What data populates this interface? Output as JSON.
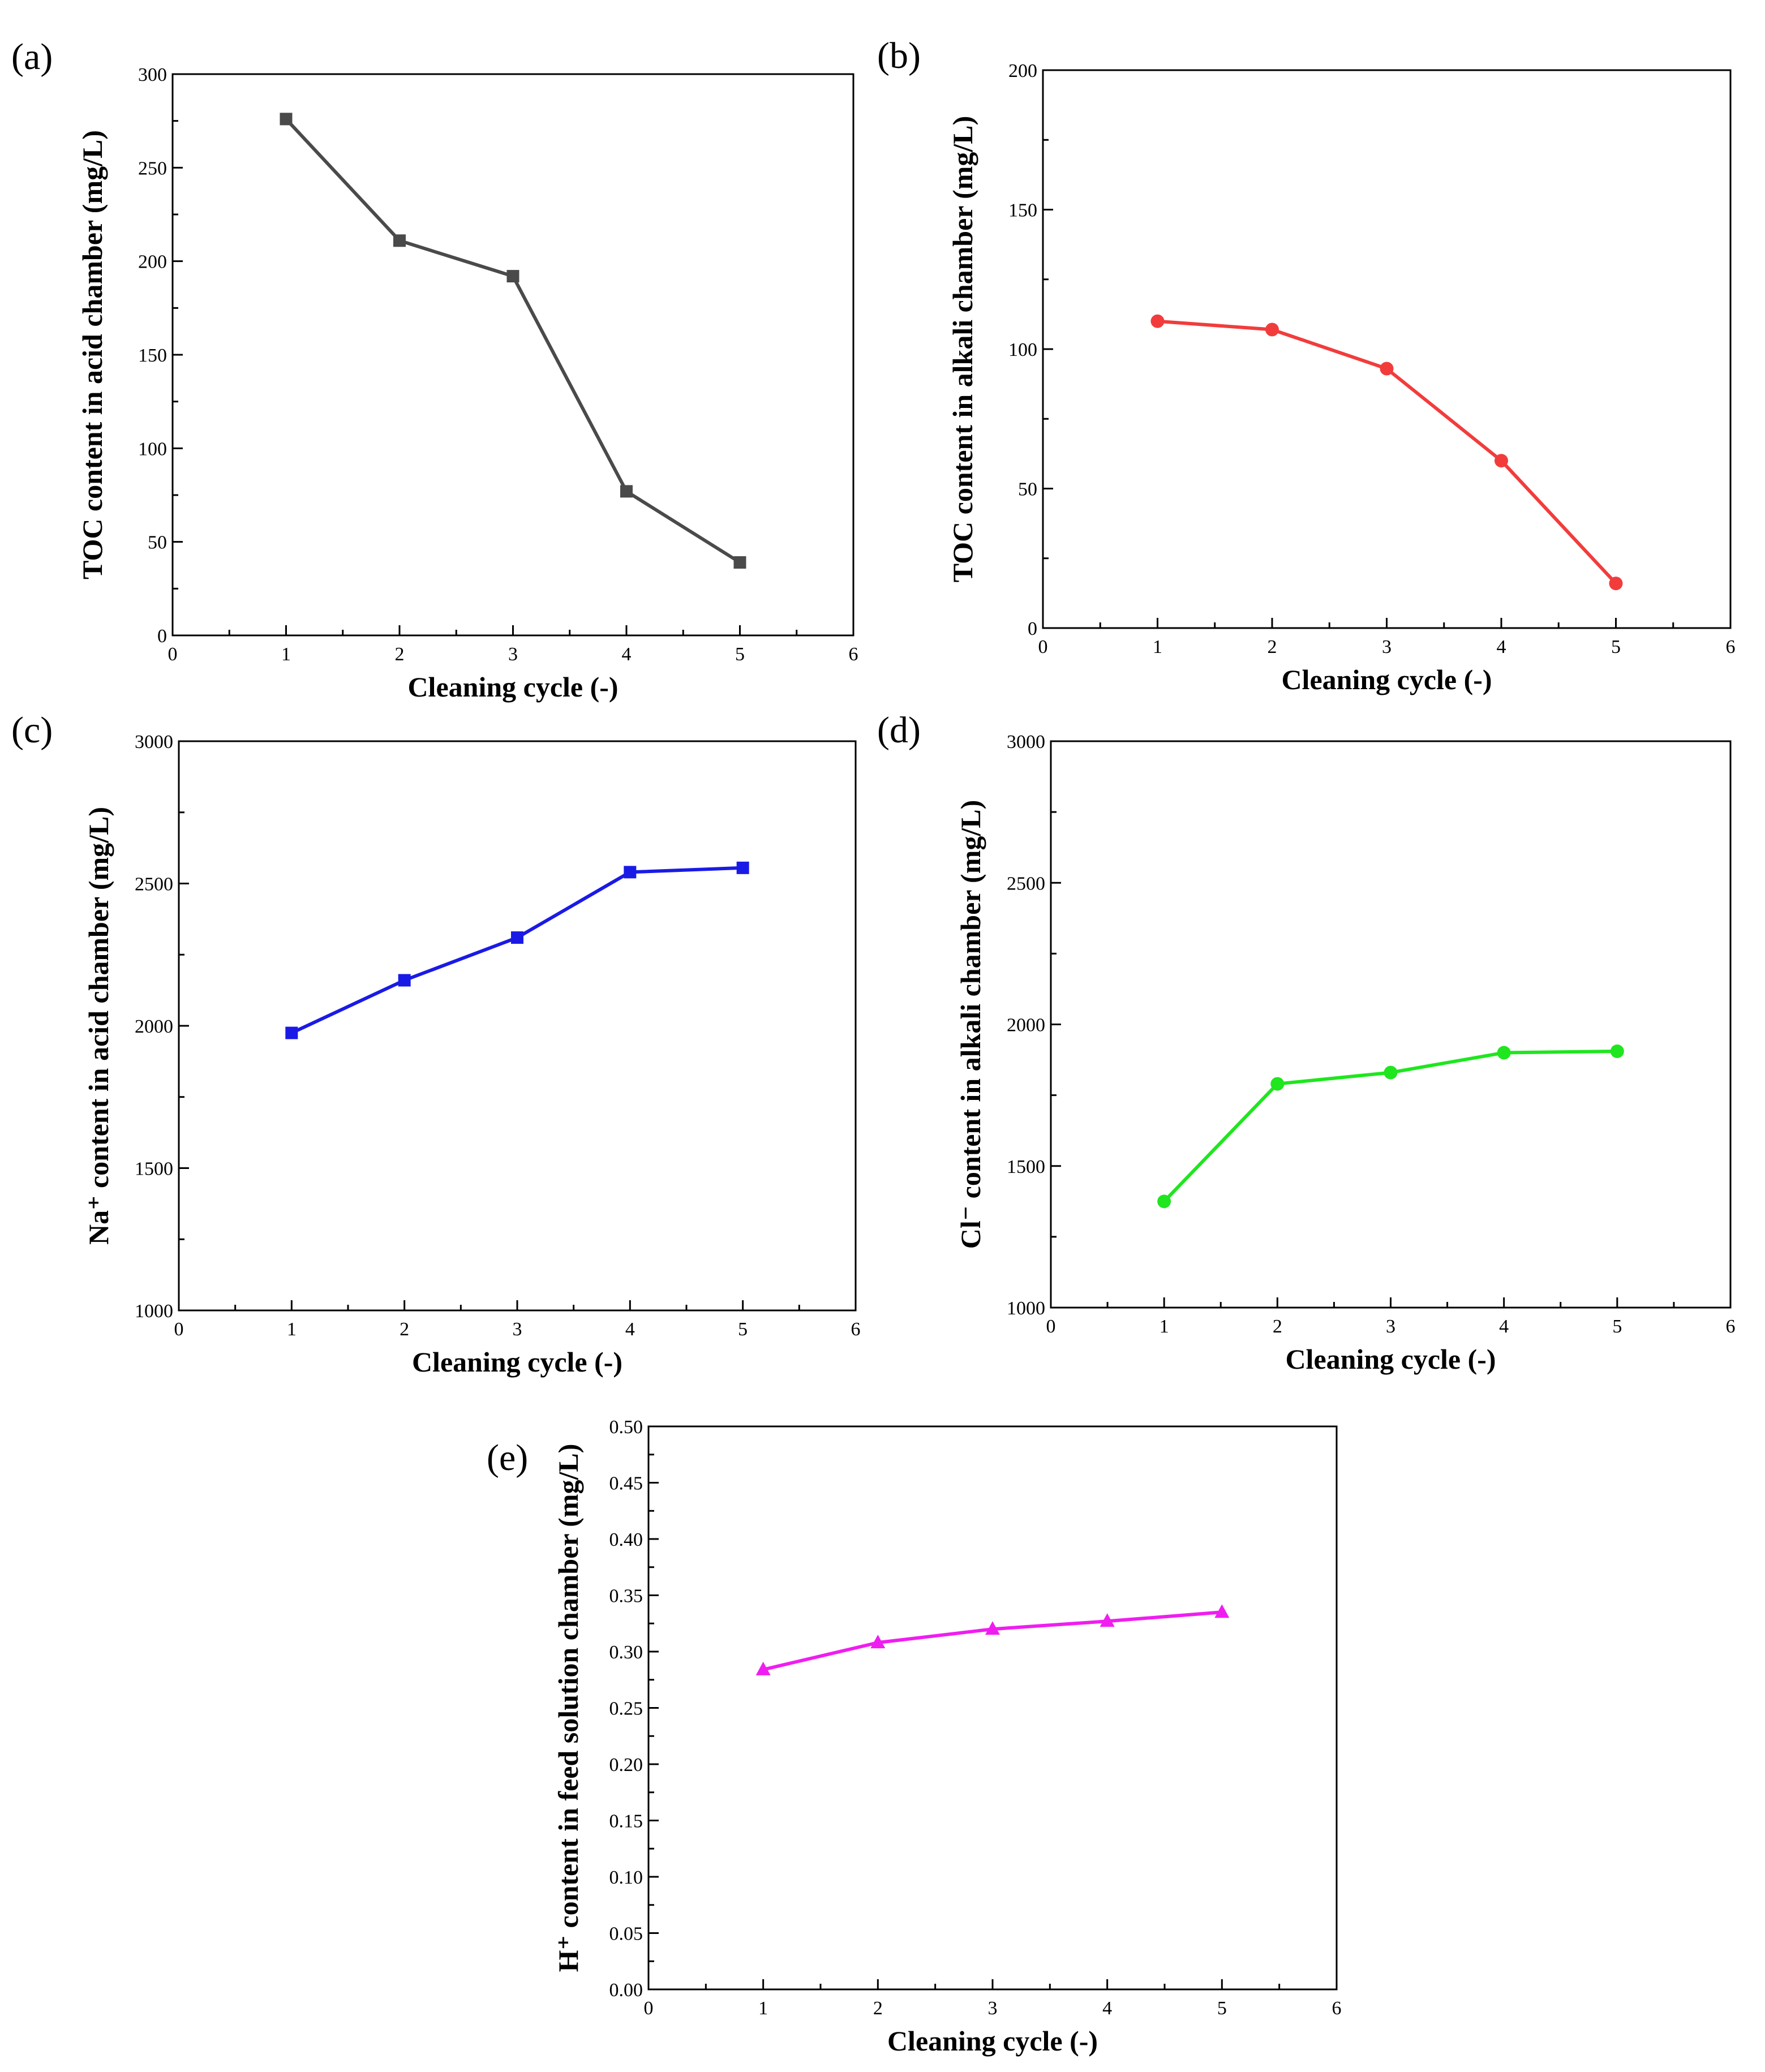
{
  "chart_data": [
    {
      "id": "a",
      "panel_label": "(a)",
      "type": "line",
      "title": "",
      "xlabel": "Cleaning cycle (-)",
      "ylabel": "TOC content in acid chamber (mg/L)",
      "xlim": [
        0,
        6
      ],
      "ylim": [
        0,
        300
      ],
      "xticks": [
        "0",
        "1",
        "2",
        "3",
        "4",
        "5",
        "6"
      ],
      "yticks": [
        "0",
        "50",
        "100",
        "150",
        "200",
        "250",
        "300"
      ],
      "ytick_values": [
        0,
        50,
        100,
        150,
        200,
        250,
        300
      ],
      "grid": false,
      "series": [
        {
          "name": "TOC (acid chamber)",
          "color": "#4a4a4a",
          "marker": "square",
          "x": [
            1,
            2,
            3,
            4,
            5
          ],
          "values": [
            276,
            211,
            192,
            77,
            39
          ]
        }
      ]
    },
    {
      "id": "b",
      "panel_label": "(b)",
      "type": "line",
      "title": "",
      "xlabel": "Cleaning cycle (-)",
      "ylabel": "TOC content in alkali chamber (mg/L)",
      "xlim": [
        0,
        6
      ],
      "ylim": [
        0,
        200
      ],
      "xticks": [
        "0",
        "1",
        "2",
        "3",
        "4",
        "5",
        "6"
      ],
      "yticks": [
        "0",
        "50",
        "100",
        "150",
        "200"
      ],
      "ytick_values": [
        0,
        50,
        100,
        150,
        200
      ],
      "grid": false,
      "series": [
        {
          "name": "TOC (alkali chamber)",
          "color": "#f23c3c",
          "marker": "circle",
          "x": [
            1,
            2,
            3,
            4,
            5
          ],
          "values": [
            110,
            107,
            93,
            60,
            16
          ]
        }
      ]
    },
    {
      "id": "c",
      "panel_label": "(c)",
      "type": "line",
      "title": "",
      "xlabel": "Cleaning cycle (-)",
      "ylabel": "Na⁺ content in acid chamber (mg/L)",
      "xlim": [
        0,
        6
      ],
      "ylim": [
        1000,
        3000
      ],
      "xticks": [
        "0",
        "1",
        "2",
        "3",
        "4",
        "5",
        "6"
      ],
      "yticks": [
        "1000",
        "1500",
        "2000",
        "2500",
        "3000"
      ],
      "ytick_values": [
        1000,
        1500,
        2000,
        2500,
        3000
      ],
      "grid": false,
      "series": [
        {
          "name": "Na+ (acid chamber)",
          "color": "#1a1ae6",
          "marker": "square",
          "x": [
            1,
            2,
            3,
            4,
            5
          ],
          "values": [
            1975,
            2160,
            2310,
            2540,
            2555
          ]
        }
      ]
    },
    {
      "id": "d",
      "panel_label": "(d)",
      "type": "line",
      "title": "",
      "xlabel": "Cleaning cycle (-)",
      "ylabel": "Cl⁻ content in alkali chamber (mg/L)",
      "xlim": [
        0,
        6
      ],
      "ylim": [
        1000,
        3000
      ],
      "xticks": [
        "0",
        "1",
        "2",
        "3",
        "4",
        "5",
        "6"
      ],
      "yticks": [
        "1000",
        "1500",
        "2000",
        "2500",
        "3000"
      ],
      "ytick_values": [
        1000,
        1500,
        2000,
        2500,
        3000
      ],
      "grid": false,
      "series": [
        {
          "name": "Cl- (alkali chamber)",
          "color": "#1fe61f",
          "marker": "circle",
          "x": [
            1,
            2,
            3,
            4,
            5
          ],
          "values": [
            1375,
            1790,
            1830,
            1900,
            1905
          ]
        }
      ]
    },
    {
      "id": "e",
      "panel_label": "(e)",
      "type": "line",
      "title": "",
      "xlabel": "Cleaning cycle (-)",
      "ylabel": "H⁺ content in feed solution chamber (mg/L)",
      "xlim": [
        0,
        6
      ],
      "ylim": [
        0,
        0.5
      ],
      "xticks": [
        "0",
        "1",
        "2",
        "3",
        "4",
        "5",
        "6"
      ],
      "yticks": [
        "0.00",
        "0.05",
        "0.10",
        "0.15",
        "0.20",
        "0.25",
        "0.30",
        "0.35",
        "0.40",
        "0.45",
        "0.50"
      ],
      "ytick_values": [
        0,
        0.05,
        0.1,
        0.15,
        0.2,
        0.25,
        0.3,
        0.35,
        0.4,
        0.45,
        0.5
      ],
      "grid": false,
      "series": [
        {
          "name": "H+ (feed solution chamber)",
          "color": "#f01df0",
          "marker": "triangle",
          "x": [
            1,
            2,
            3,
            4,
            5
          ],
          "values": [
            0.284,
            0.308,
            0.32,
            0.327,
            0.335
          ]
        }
      ]
    }
  ]
}
